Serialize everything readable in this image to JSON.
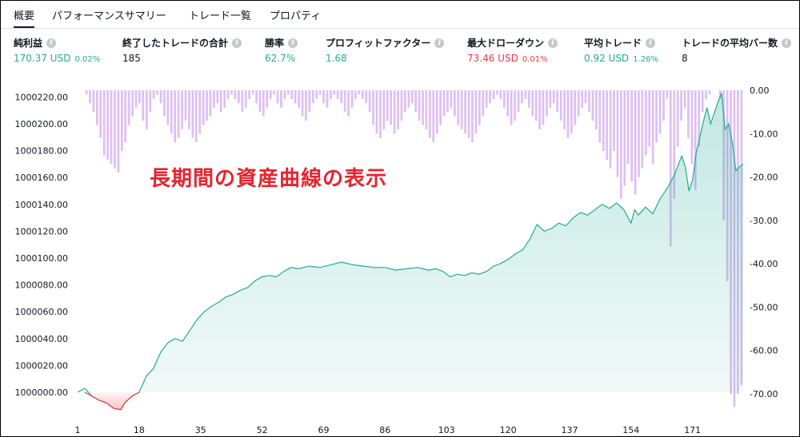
{
  "tabs": [
    {
      "label": "概要",
      "active": true
    },
    {
      "label": "パフォーマンスサマリー",
      "active": false
    },
    {
      "label": "トレード一覧",
      "active": false
    },
    {
      "label": "プロパティ",
      "active": false
    }
  ],
  "metrics": [
    {
      "label": "純利益",
      "value": "170.37 USD",
      "sub": "0.02%",
      "color": "green"
    },
    {
      "label": "終了したトレードの合計",
      "value": "185",
      "sub": "",
      "color": "dark"
    },
    {
      "label": "勝率",
      "value": "62.7%",
      "sub": "",
      "color": "green"
    },
    {
      "label": "プロフィットファクター",
      "value": "1.68",
      "sub": "",
      "color": "green"
    },
    {
      "label": "最大ドローダウン",
      "value": "73.46 USD",
      "sub": "0.01%",
      "color": "red"
    },
    {
      "label": "平均トレード",
      "value": "0.92 USD",
      "sub": "1.26%",
      "color": "green"
    },
    {
      "label": "トレードの平均バー数",
      "value": "8",
      "sub": "",
      "color": "dark"
    }
  ],
  "icons": {
    "info": "info-icon"
  },
  "annotation": "長期間の資産曲線の表示",
  "chart_data": {
    "type": "area",
    "x_range": [
      1,
      185
    ],
    "x_ticks": [
      "1",
      "18",
      "35",
      "52",
      "69",
      "86",
      "103",
      "120",
      "137",
      "154",
      "171"
    ],
    "y_left_range": [
      999990,
      1000230
    ],
    "y_left_ticks": [
      "1000220.00",
      "1000200.00",
      "1000180.00",
      "1000160.00",
      "1000140.00",
      "1000120.00",
      "1000100.00",
      "1000080.00",
      "1000060.00",
      "1000040.00",
      "1000020.00",
      "1000000.00"
    ],
    "y_right_range": [
      -72,
      0
    ],
    "y_right_ticks": [
      "0.00",
      "-10.00",
      "-20.00",
      "-30.00",
      "-40.00",
      "-50.00",
      "-60.00",
      "-70.00"
    ],
    "equity": {
      "baseline": 1000000,
      "x": [
        1,
        3,
        5,
        7,
        9,
        11,
        13,
        14,
        16,
        18,
        20,
        22,
        24,
        26,
        28,
        30,
        32,
        34,
        36,
        38,
        40,
        42,
        44,
        46,
        48,
        50,
        52,
        54,
        56,
        58,
        60,
        62,
        65,
        68,
        71,
        74,
        77,
        80,
        83,
        86,
        89,
        92,
        95,
        98,
        100,
        102,
        104,
        106,
        108,
        110,
        112,
        114,
        116,
        118,
        120,
        122,
        124,
        126,
        128,
        130,
        132,
        134,
        136,
        138,
        140,
        142,
        144,
        146,
        148,
        150,
        152,
        154,
        155,
        156,
        158,
        160,
        162,
        164,
        166,
        168,
        169,
        170,
        171,
        172,
        174,
        175,
        176,
        177,
        178,
        179,
        180,
        181,
        182,
        183,
        184,
        185
      ],
      "y": [
        1000000,
        1000003,
        999997,
        999994,
        999992,
        999988,
        999987,
        999992,
        999997,
        1000000,
        1000012,
        1000018,
        1000030,
        1000037,
        1000040,
        1000038,
        1000046,
        1000054,
        1000060,
        1000064,
        1000067,
        1000071,
        1000073,
        1000076,
        1000078,
        1000083,
        1000086,
        1000087,
        1000086,
        1000090,
        1000093,
        1000092,
        1000094,
        1000093,
        1000095,
        1000097,
        1000095,
        1000094,
        1000093,
        1000093,
        1000091,
        1000092,
        1000093,
        1000091,
        1000092,
        1000090,
        1000086,
        1000088,
        1000087,
        1000089,
        1000088,
        1000090,
        1000094,
        1000096,
        1000099,
        1000103,
        1000106,
        1000114,
        1000125,
        1000120,
        1000122,
        1000126,
        1000124,
        1000130,
        1000134,
        1000132,
        1000136,
        1000140,
        1000137,
        1000141,
        1000136,
        1000126,
        1000136,
        1000132,
        1000138,
        1000133,
        1000144,
        1000152,
        1000162,
        1000176,
        1000168,
        1000150,
        1000158,
        1000178,
        1000202,
        1000212,
        1000200,
        1000208,
        1000216,
        1000223,
        1000196,
        1000200,
        1000186,
        1000165,
        1000168,
        1000170
      ]
    },
    "drawdown": [
      0,
      0,
      -1,
      -3,
      -5,
      -8,
      -11,
      -15,
      -16,
      -17,
      -18,
      -19,
      -14,
      -12,
      -8,
      -6,
      -4,
      -3,
      -7,
      -9,
      -5,
      -2,
      -1,
      -3,
      -6,
      -8,
      -10,
      -12,
      -11,
      -9,
      -7,
      -9,
      -11,
      -12,
      -10,
      -8,
      -7,
      -6,
      -4,
      -3,
      -5,
      -4,
      -2,
      -1,
      -2,
      -3,
      -5,
      -4,
      -2,
      -1,
      -3,
      -5,
      -6,
      -4,
      -2,
      -1,
      -3,
      -4,
      -2,
      -1,
      -2,
      -3,
      -4,
      -6,
      -7,
      -5,
      -3,
      -2,
      -1,
      -3,
      -4,
      -2,
      -1,
      -2,
      -3,
      -5,
      -6,
      -4,
      -2,
      -1,
      -2,
      -3,
      -5,
      -8,
      -10,
      -11,
      -9,
      -7,
      -8,
      -10,
      -9,
      -7,
      -5,
      -4,
      -3,
      -5,
      -7,
      -8,
      -9,
      -11,
      -12,
      -10,
      -8,
      -6,
      -5,
      -4,
      -6,
      -8,
      -9,
      -10,
      -11,
      -12,
      -10,
      -8,
      -6,
      -4,
      -3,
      -2,
      -1,
      -2,
      -4,
      -6,
      -8,
      -7,
      -5,
      -3,
      -2,
      -4,
      -6,
      -7,
      -9,
      -8,
      -6,
      -4,
      -3,
      -5,
      -7,
      -9,
      -11,
      -10,
      -8,
      -6,
      -4,
      -3,
      -5,
      -7,
      -9,
      -12,
      -14,
      -16,
      -18,
      -14,
      -20,
      -25,
      -22,
      -17,
      -21,
      -24,
      -20,
      -18,
      -15,
      -13,
      -17,
      -12,
      -10,
      -7,
      -2,
      -36,
      -25,
      -13,
      -7,
      -4,
      -11,
      -17,
      -23,
      -13,
      -5,
      -2,
      -1,
      0,
      0,
      -2,
      -30,
      -44,
      -70,
      -73,
      -70,
      -68
    ]
  }
}
